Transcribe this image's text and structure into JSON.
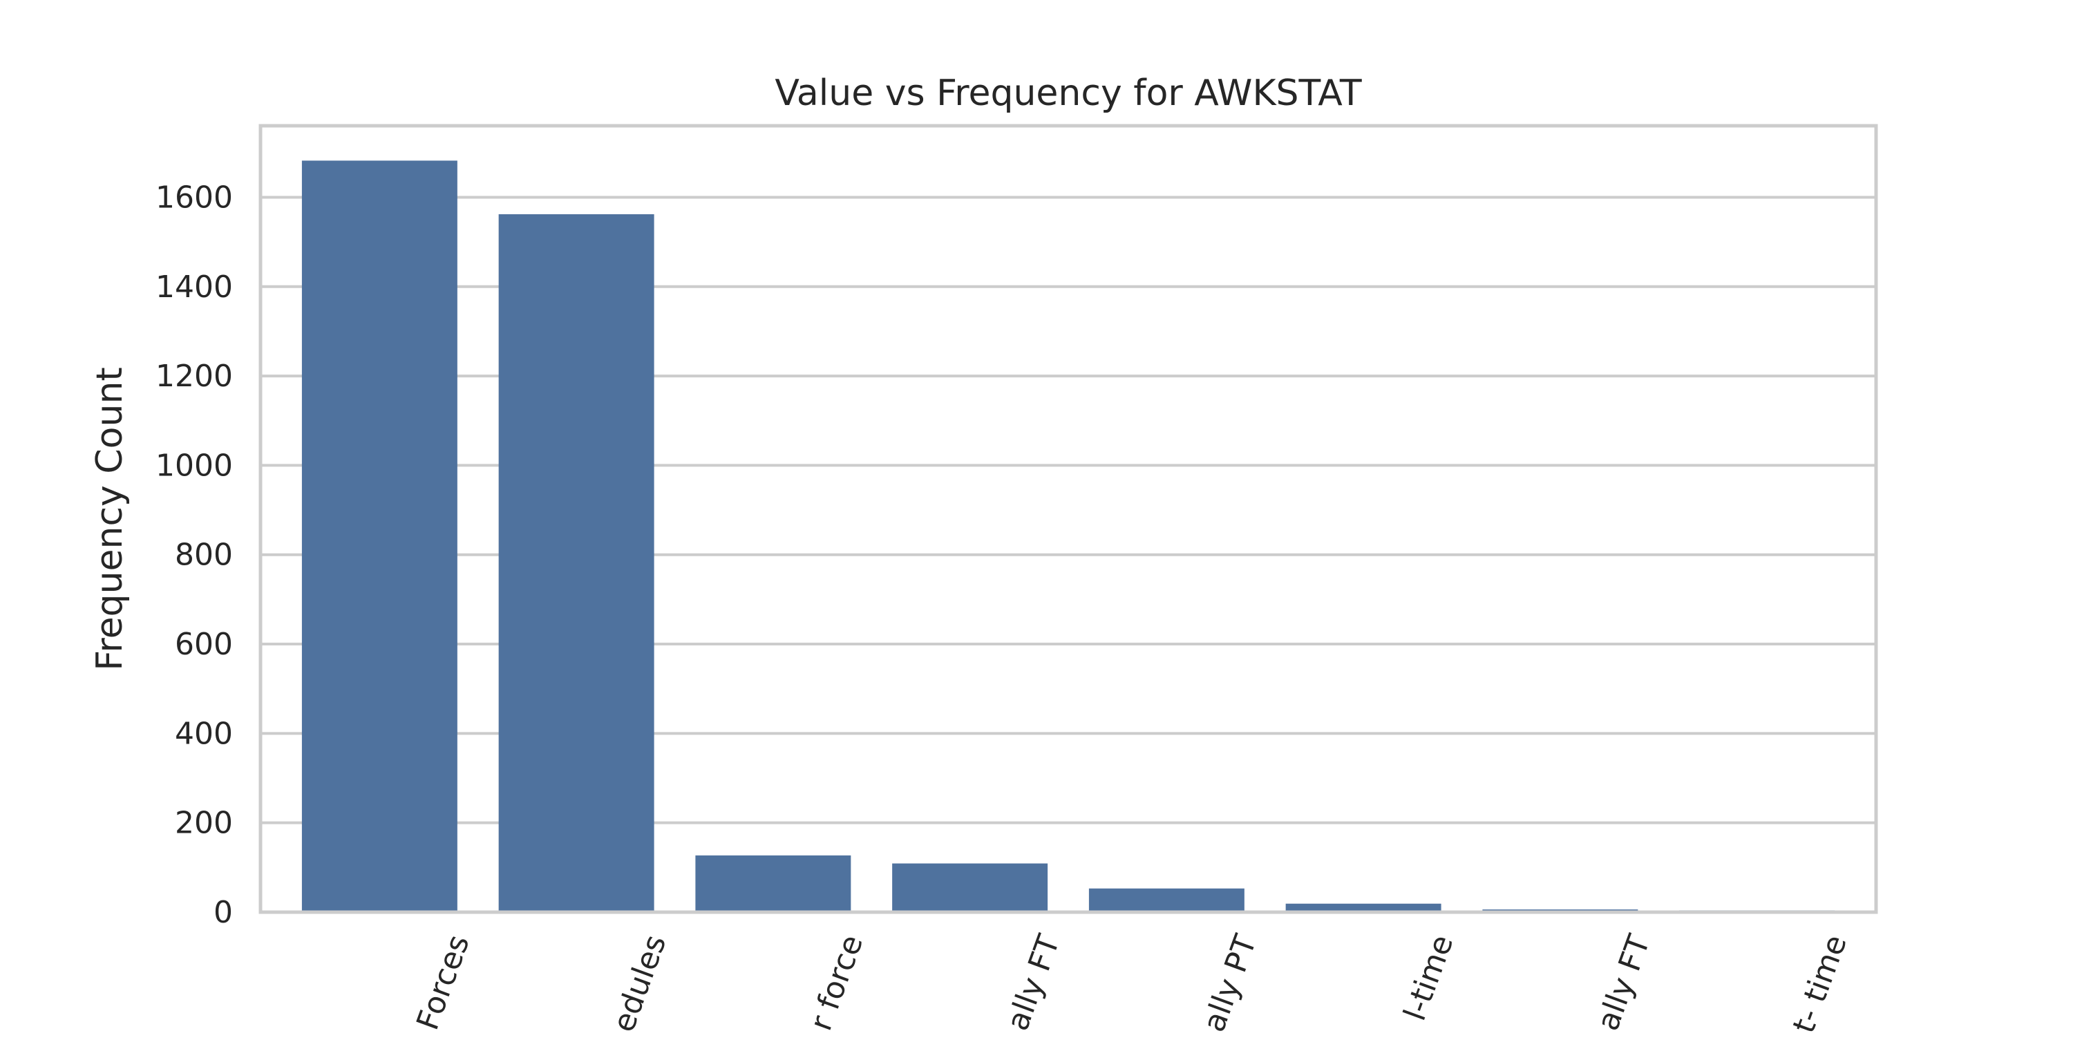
{
  "chart_data": {
    "type": "bar",
    "title": "Value vs Frequency for AWKSTAT",
    "xlabel": "",
    "ylabel": "Frequency Count",
    "categories": [
      "Forces",
      "edules",
      "r force",
      "ally FT",
      "ally PT",
      "l-time",
      "ally FT",
      "t- time"
    ],
    "values": [
      1682,
      1562,
      127,
      109,
      53,
      19,
      6,
      4
    ],
    "ylim": [
      0,
      1760
    ],
    "yticks": [
      0,
      200,
      400,
      600,
      800,
      1000,
      1200,
      1400,
      1600
    ],
    "grid": true,
    "legend": "none",
    "bar_color": "#4f729e"
  }
}
